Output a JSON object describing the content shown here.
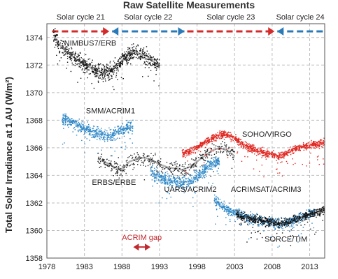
{
  "chart_data": {
    "type": "scatter",
    "title": "Raw Satellite Measurements",
    "xlabel": "",
    "ylabel": "Total Solar Irradiance at 1 AU (W/m²)",
    "xlim": [
      1978,
      2015
    ],
    "ylim": [
      1358,
      1375
    ],
    "x_ticks": [
      "1978",
      "1983",
      "1988",
      "1993",
      "1998",
      "2003",
      "2008",
      "2013"
    ],
    "y_ticks": [
      "1358",
      "1360",
      "1362",
      "1364",
      "1366",
      "1368",
      "1370",
      "1372",
      "1374"
    ],
    "grid": true,
    "solar_cycles": [
      {
        "label": "Solar cycle 21",
        "start": 1978.5,
        "end": 1986.5,
        "color": "#d42a2a",
        "dir": "right"
      },
      {
        "label": "Solar cycle 22",
        "start": 1986.5,
        "end": 1996.5,
        "color": "#2a7ab8",
        "dir": "both"
      },
      {
        "label": "Solar cycle 23",
        "start": 1996.5,
        "end": 2008.5,
        "color": "#d42a2a",
        "dir": "right"
      },
      {
        "label": "Solar cycle 24",
        "start": 2008.5,
        "end": 2015.0,
        "color": "#2a7ab8",
        "dir": "left"
      }
    ],
    "annotations": [
      {
        "text": "ACRIM gap",
        "from": 1989.5,
        "to": 1991.8,
        "y": 1358.8,
        "color": "#c0282d"
      }
    ],
    "series": [
      {
        "name": "NIMBUS7/ERB",
        "color": "#111111",
        "label_x": 1980.3,
        "label_y": 1373.4,
        "x": [
          1978.9,
          1979.5,
          1980.5,
          1981.5,
          1982.5,
          1983.5,
          1984.5,
          1985.5,
          1986.5,
          1987.5,
          1988.5,
          1989.5,
          1990.5,
          1991.5,
          1992.5,
          1993.0
        ],
        "y": [
          1374.2,
          1373.6,
          1373.0,
          1372.6,
          1372.2,
          1371.9,
          1371.6,
          1371.5,
          1371.6,
          1372.0,
          1372.6,
          1373.0,
          1372.8,
          1372.6,
          1372.1,
          1371.8
        ]
      },
      {
        "name": "SMM/ACRIM1",
        "color": "#2b86c7",
        "label_x": 1983.2,
        "label_y": 1368.5,
        "x": [
          1980.0,
          1981.0,
          1982.0,
          1983.0,
          1984.0,
          1985.0,
          1986.0,
          1987.0,
          1988.0,
          1989.0,
          1989.5
        ],
        "y": [
          1368.1,
          1367.9,
          1367.7,
          1367.4,
          1367.2,
          1367.0,
          1366.9,
          1367.0,
          1367.3,
          1367.6,
          1367.5
        ]
      },
      {
        "name": "ERBS/ERBE",
        "color": "#222222",
        "label_x": 1984.0,
        "label_y": 1363.3,
        "x": [
          1984.8,
          1986.0,
          1987.0,
          1988.0,
          1989.0,
          1990.0,
          1991.0,
          1992.0,
          1993.0,
          1994.0,
          1995.0,
          1996.0,
          1997.0,
          1998.0,
          1999.0,
          2000.0,
          2001.0,
          2002.0,
          2003.0
        ],
        "y": [
          1365.2,
          1364.9,
          1364.6,
          1364.4,
          1365.0,
          1365.2,
          1365.3,
          1365.1,
          1364.8,
          1364.6,
          1364.5,
          1364.4,
          1364.6,
          1365.0,
          1365.4,
          1365.8,
          1366.0,
          1365.8,
          1365.4
        ]
      },
      {
        "name": "UARS/ACRIM2",
        "color": "#2b86c7",
        "label_x": 1993.6,
        "label_y": 1362.8,
        "x": [
          1991.8,
          1992.5,
          1993.5,
          1994.5,
          1995.5,
          1996.5,
          1997.5,
          1998.5,
          1999.5,
          2000.5,
          2001.0
        ],
        "y": [
          1364.4,
          1364.0,
          1363.8,
          1363.6,
          1363.5,
          1363.5,
          1363.7,
          1364.2,
          1364.7,
          1365.0,
          1364.8
        ]
      },
      {
        "name": "SOHO/VIRGO",
        "color": "#e0241e",
        "label_x": 2004.0,
        "label_y": 1366.8,
        "x": [
          1996.0,
          1997.0,
          1998.0,
          1999.0,
          2000.0,
          2001.0,
          2002.0,
          2003.0,
          2004.0,
          2005.0,
          2006.0,
          2007.0,
          2008.0,
          2009.0,
          2010.0,
          2011.0,
          2012.0,
          2013.0,
          2014.0,
          2015.0
        ],
        "y": [
          1365.6,
          1365.7,
          1366.0,
          1366.4,
          1366.7,
          1366.9,
          1367.0,
          1366.7,
          1366.3,
          1366.0,
          1365.8,
          1365.6,
          1365.5,
          1365.4,
          1365.6,
          1365.9,
          1366.1,
          1366.2,
          1366.3,
          1366.4
        ]
      },
      {
        "name": "ACRIMSAT/ACRIM3",
        "color": "#2b86c7",
        "label_x": 2002.5,
        "label_y": 1362.8,
        "x": [
          2000.3,
          2001.0,
          2002.0,
          2003.0,
          2004.0,
          2005.0,
          2006.0,
          2007.0,
          2008.0,
          2009.0,
          2010.0,
          2011.0,
          2012.0,
          2013.0,
          2013.8
        ],
        "y": [
          1362.3,
          1361.9,
          1361.5,
          1361.3,
          1361.1,
          1360.9,
          1360.8,
          1360.7,
          1360.6,
          1360.5,
          1360.6,
          1360.8,
          1361.0,
          1361.2,
          1361.3
        ]
      },
      {
        "name": "SORCE/TIM",
        "color": "#111111",
        "label_x": 2007.0,
        "label_y": 1359.2,
        "x": [
          2003.2,
          2004.0,
          2005.0,
          2006.0,
          2007.0,
          2008.0,
          2009.0,
          2010.0,
          2011.0,
          2012.0,
          2013.0,
          2014.0,
          2015.0
        ],
        "y": [
          1361.2,
          1361.0,
          1360.9,
          1360.8,
          1360.7,
          1360.6,
          1360.5,
          1360.6,
          1360.8,
          1361.0,
          1361.2,
          1361.3,
          1361.5
        ]
      }
    ]
  }
}
